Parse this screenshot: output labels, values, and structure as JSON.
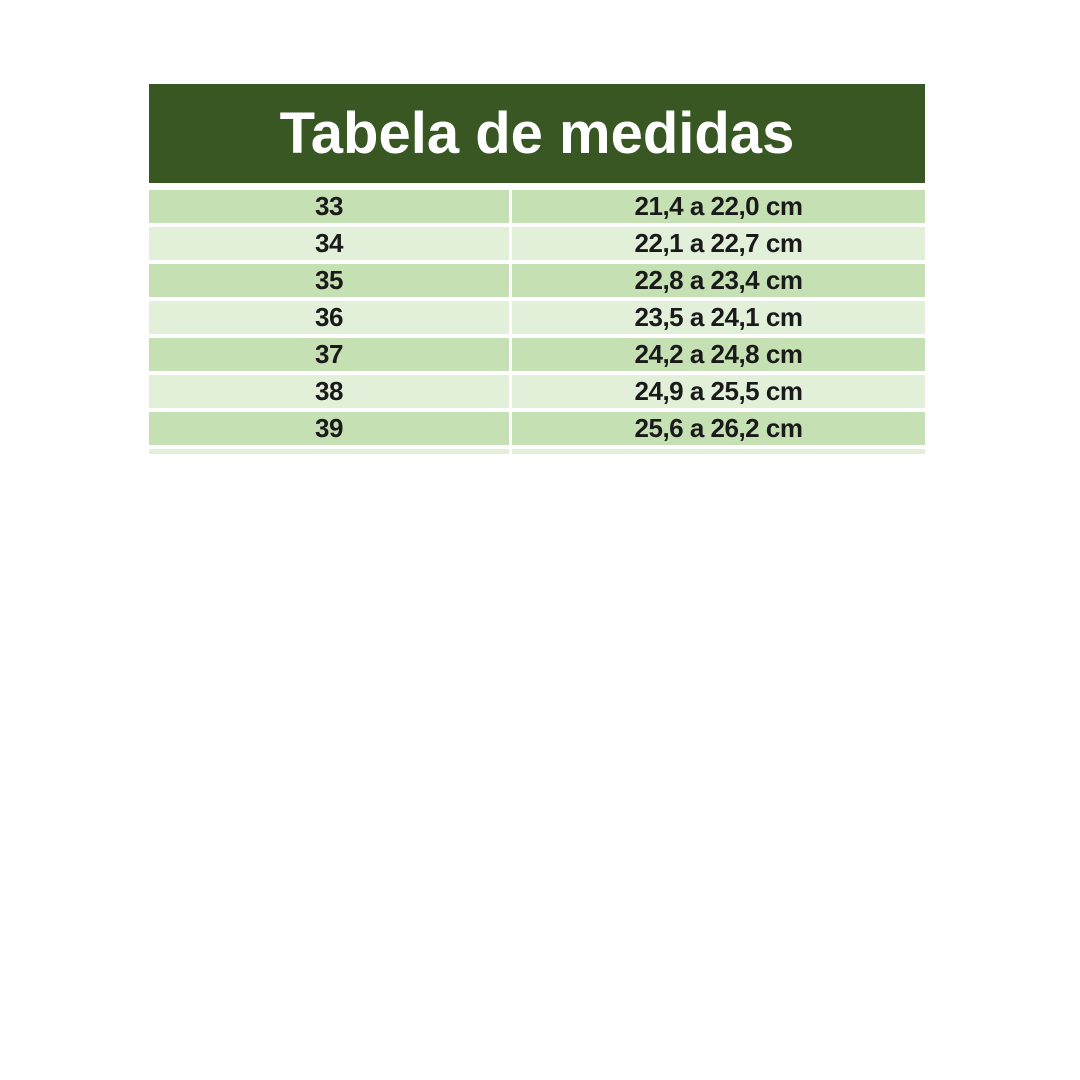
{
  "title": "Tabela de medidas",
  "colors": {
    "header_bg": "#385723",
    "row_dark": "#c5e0b3",
    "row_light": "#e2efd9",
    "title_text": "#ffffff",
    "cell_text": "#1a1a1a",
    "canvas_bg": "#ffffff"
  },
  "chart_data": {
    "type": "table",
    "title": "Tabela de medidas",
    "rows": [
      {
        "size": "33",
        "range": "21,4 a 22,0 cm"
      },
      {
        "size": "34",
        "range": "22,1 a 22,7 cm"
      },
      {
        "size": "35",
        "range": "22,8 a 23,4 cm"
      },
      {
        "size": "36",
        "range": "23,5 a 24,1 cm"
      },
      {
        "size": "37",
        "range": "24,2 a 24,8 cm"
      },
      {
        "size": "38",
        "range": "24,9 a 25,5 cm"
      },
      {
        "size": "39",
        "range": "25,6 a 26,2 cm"
      }
    ],
    "layout_hints": {
      "striping": "rows alternate dark-green / light-green starting dark",
      "header": "single merged dark-green banner, no column headers",
      "partial_next_row_visible": true
    }
  }
}
